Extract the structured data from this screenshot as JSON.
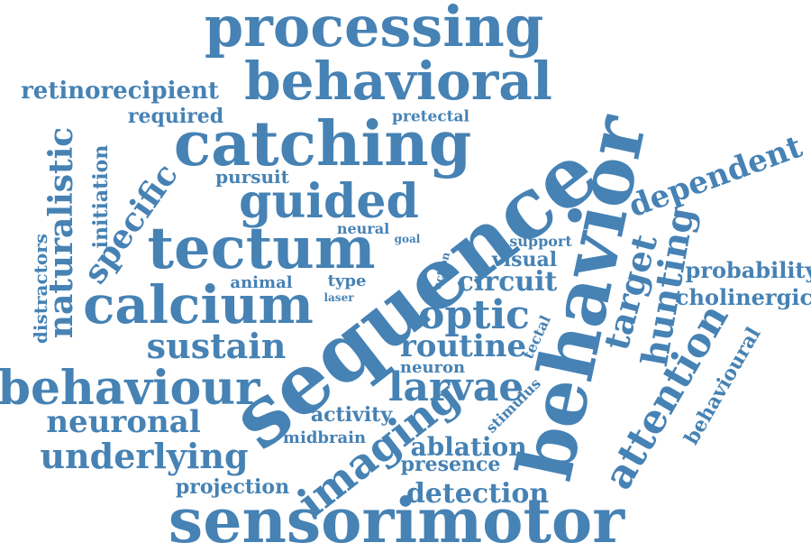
{
  "cloud": {
    "text_color": "#4682b4",
    "words": [
      "processing",
      "behavioral",
      "retinorecipient",
      "required",
      "pretectal",
      "catching",
      "naturalistic",
      "initiation",
      "pursuit",
      "guided",
      "specific",
      "distractors",
      "tectum",
      "neural",
      "goal",
      "sequence",
      "behavior",
      "dependent",
      "support",
      "visual",
      "probability",
      "cholinergic",
      "calcium",
      "animal",
      "type",
      "laser",
      "action",
      "circuit",
      "optic",
      "target",
      "hunting",
      "sustain",
      "routine",
      "tectal",
      "behaviour",
      "neuron",
      "larvae",
      "attention",
      "behavioural",
      "neuronal",
      "activity",
      "stimulus",
      "imaging",
      "midbrain",
      "ablation",
      "underlying",
      "presence",
      "projection",
      "detection",
      "sensorimotor"
    ]
  }
}
